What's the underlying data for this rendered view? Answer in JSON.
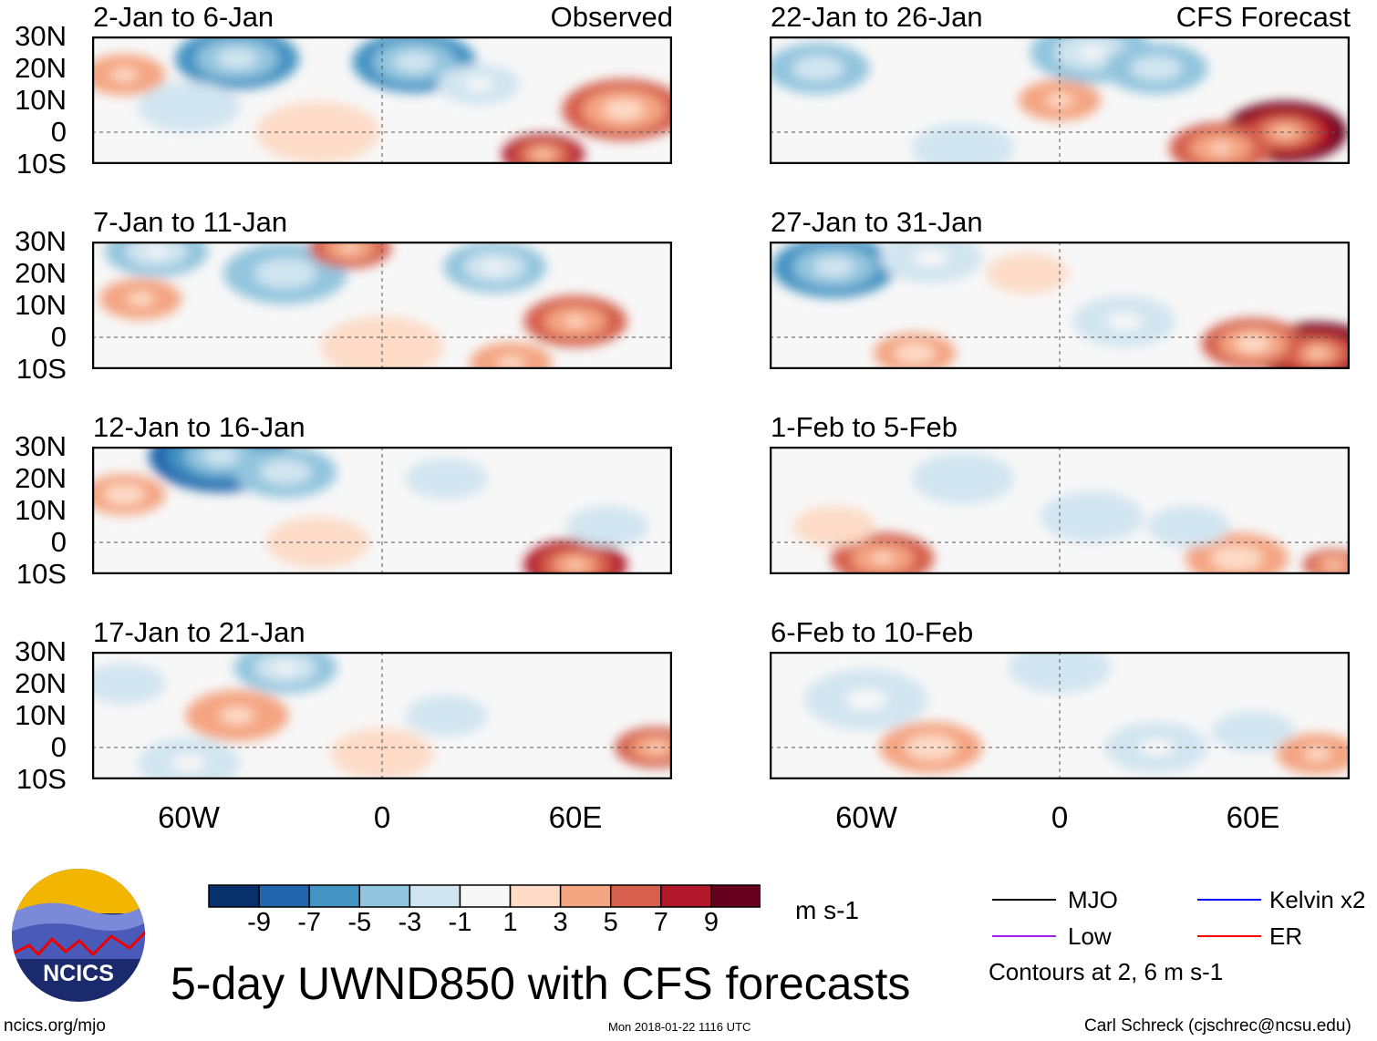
{
  "title": "5-day UWND850 with CFS forecasts",
  "footer": {
    "left": "ncics.org/mjo",
    "center": "Mon 2018-01-22 1116 UTC",
    "right": "Carl Schreck (cjschrec@ncsu.edu)"
  },
  "logo": {
    "text": "NCICS"
  },
  "colorbar": {
    "unit": "m s-1",
    "labels": [
      "-9",
      "-7",
      "-5",
      "-3",
      "-1",
      "1",
      "3",
      "5",
      "7",
      "9"
    ],
    "colors": [
      "#08306b",
      "#2166ac",
      "#4393c3",
      "#92c5de",
      "#d1e5f0",
      "#f7f7f7",
      "#fddbc7",
      "#f4a582",
      "#d6604d",
      "#b2182b",
      "#67001f"
    ]
  },
  "legend": {
    "items": [
      {
        "label": "MJO",
        "color": "#000000"
      },
      {
        "label": "Kelvin x2",
        "color": "#0000ff"
      },
      {
        "label": "Low",
        "color": "#a020f0"
      },
      {
        "label": "ER",
        "color": "#ff0000"
      }
    ],
    "note": "Contours at 2, 6 m s-1"
  },
  "axes": {
    "lat_labels": [
      "30N",
      "20N",
      "10N",
      "0",
      "10S"
    ],
    "lon_labels": [
      "60W",
      "0",
      "60E"
    ],
    "lat_range": [
      -10,
      30
    ],
    "lon_range": [
      -90,
      90
    ]
  },
  "chart_data": [
    {
      "type": "heatmap",
      "title": "2-Jan to 6-Jan",
      "tag": "Observed",
      "anomalies": [
        [
          -45,
          23,
          -6,
          12
        ],
        [
          10,
          22,
          -6,
          12
        ],
        [
          -60,
          8,
          -2,
          10
        ],
        [
          -80,
          18,
          3,
          8
        ],
        [
          75,
          7,
          6,
          12
        ],
        [
          50,
          -7,
          7,
          8
        ],
        [
          -20,
          0,
          2,
          12
        ],
        [
          30,
          15,
          -3,
          8
        ]
      ]
    },
    {
      "type": "heatmap",
      "title": "22-Jan to 26-Jan",
      "tag": "CFS Forecast",
      "anomalies": [
        [
          -75,
          20,
          -4,
          10
        ],
        [
          10,
          25,
          -5,
          12
        ],
        [
          30,
          20,
          -4,
          10
        ],
        [
          70,
          0,
          9,
          12
        ],
        [
          50,
          -5,
          5,
          10
        ],
        [
          -30,
          -5,
          -2,
          10
        ],
        [
          0,
          10,
          3,
          8
        ]
      ]
    },
    {
      "type": "heatmap",
      "title": "7-Jan to 11-Jan",
      "anomalies": [
        [
          -70,
          27,
          -5,
          10
        ],
        [
          -30,
          20,
          -4,
          12
        ],
        [
          35,
          22,
          -5,
          10
        ],
        [
          60,
          5,
          5,
          10
        ],
        [
          -10,
          28,
          5,
          8
        ],
        [
          -75,
          12,
          3,
          8
        ],
        [
          0,
          -3,
          2,
          12
        ],
        [
          40,
          -8,
          3,
          8
        ]
      ]
    },
    {
      "type": "heatmap",
      "title": "27-Jan to 31-Jan",
      "anomalies": [
        [
          -70,
          22,
          -6,
          12
        ],
        [
          -40,
          25,
          -3,
          10
        ],
        [
          20,
          5,
          -3,
          10
        ],
        [
          80,
          -5,
          9,
          12
        ],
        [
          60,
          -2,
          6,
          10
        ],
        [
          -45,
          -5,
          4,
          8
        ],
        [
          -10,
          20,
          2,
          8
        ]
      ]
    },
    {
      "type": "heatmap",
      "title": "12-Jan to 16-Jan",
      "anomalies": [
        [
          -50,
          27,
          -8,
          14
        ],
        [
          -30,
          22,
          -4,
          10
        ],
        [
          -80,
          15,
          4,
          8
        ],
        [
          60,
          -7,
          7,
          10
        ],
        [
          20,
          20,
          -2,
          8
        ],
        [
          70,
          5,
          -2,
          8
        ],
        [
          -20,
          0,
          2,
          10
        ]
      ]
    },
    {
      "type": "heatmap",
      "title": "1-Feb to 5-Feb",
      "anomalies": [
        [
          -55,
          -5,
          5,
          10
        ],
        [
          -70,
          5,
          2,
          8
        ],
        [
          55,
          -5,
          4,
          10
        ],
        [
          85,
          -7,
          5,
          6
        ],
        [
          10,
          8,
          -2,
          10
        ],
        [
          -30,
          20,
          -2,
          10
        ],
        [
          40,
          5,
          -2,
          8
        ]
      ]
    },
    {
      "type": "heatmap",
      "title": "17-Jan to 21-Jan",
      "anomalies": [
        [
          -30,
          25,
          -5,
          10
        ],
        [
          -60,
          -5,
          -3,
          10
        ],
        [
          -45,
          10,
          3,
          10
        ],
        [
          85,
          0,
          5,
          8
        ],
        [
          20,
          10,
          -2,
          8
        ],
        [
          0,
          -2,
          2,
          10
        ],
        [
          -80,
          20,
          -2,
          8
        ]
      ]
    },
    {
      "type": "heatmap",
      "title": "6-Feb to 10-Feb",
      "anomalies": [
        [
          -60,
          15,
          -3,
          12
        ],
        [
          -40,
          0,
          4,
          10
        ],
        [
          30,
          0,
          -3,
          10
        ],
        [
          60,
          5,
          -2,
          8
        ],
        [
          80,
          -2,
          3,
          8
        ],
        [
          0,
          25,
          -2,
          10
        ]
      ]
    }
  ]
}
